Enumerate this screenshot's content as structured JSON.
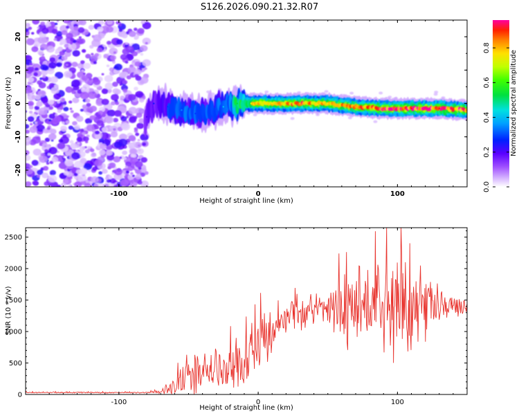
{
  "title": "S126.2026.090.21.32.R07",
  "chart_data": [
    {
      "type": "heatmap",
      "title": "S126.2026.090.21.32.R07",
      "xlabel": "Height of straight line (km)",
      "ylabel": "Frequency (Hz)",
      "xlim": [
        -167,
        150
      ],
      "ylim": [
        -25,
        25
      ],
      "x_ticks": [
        -100,
        0,
        100
      ],
      "x_tick_labels": [
        "-100",
        "0",
        "100"
      ],
      "y_ticks": [
        -20,
        -10,
        0,
        10,
        20
      ],
      "y_tick_labels": [
        "-20",
        "-10",
        "0",
        "10",
        "20"
      ],
      "colorbar": {
        "label": "Normalized spectral amplitude",
        "range": [
          0,
          0.96
        ],
        "ticks": [
          0.0,
          0.2,
          0.4,
          0.6,
          0.8
        ],
        "tick_labels": [
          "0.0",
          "0.2",
          "0.4",
          "0.6",
          "0.8"
        ]
      },
      "signal_band": [
        {
          "x": -80,
          "freq": -4,
          "amp": 0.2
        },
        {
          "x": -75,
          "freq": 0,
          "amp": 0.25
        },
        {
          "x": -65,
          "freq": -1,
          "amp": 0.3
        },
        {
          "x": -55,
          "freq": -2,
          "amp": 0.35
        },
        {
          "x": -45,
          "freq": -3,
          "amp": 0.3
        },
        {
          "x": -35,
          "freq": -3,
          "amp": 0.3
        },
        {
          "x": -25,
          "freq": -1,
          "amp": 0.4
        },
        {
          "x": -15,
          "freq": 0,
          "amp": 0.55
        },
        {
          "x": -5,
          "freq": 0,
          "amp": 0.75
        },
        {
          "x": 10,
          "freq": 0,
          "amp": 0.8
        },
        {
          "x": 30,
          "freq": 0,
          "amp": 0.85
        },
        {
          "x": 50,
          "freq": 0,
          "amp": 0.8
        },
        {
          "x": 70,
          "freq": -1,
          "amp": 0.85
        },
        {
          "x": 90,
          "freq": -1.5,
          "amp": 0.9
        },
        {
          "x": 110,
          "freq": -1.5,
          "amp": 0.95
        },
        {
          "x": 130,
          "freq": -1.5,
          "amp": 0.95
        },
        {
          "x": 150,
          "freq": -2,
          "amp": 0.9
        }
      ]
    },
    {
      "type": "line",
      "xlabel": "Height of straight line (km)",
      "ylabel": "SNR (10 * v/v)",
      "xlim": [
        -167,
        150
      ],
      "ylim": [
        0,
        2650
      ],
      "x_ticks": [
        -100,
        0,
        100
      ],
      "x_tick_labels": [
        "-100",
        "0",
        "100"
      ],
      "y_ticks": [
        0,
        500,
        1000,
        1500,
        2000,
        2500
      ],
      "y_tick_labels": [
        "0",
        "500",
        "1000",
        "1500",
        "2000",
        "2500"
      ],
      "series": [
        {
          "name": "SNR",
          "color": "#e8322c",
          "envelope": {
            "x": [
              -167,
              -80,
              -70,
              -60,
              -50,
              -40,
              -30,
              -20,
              -10,
              0,
              10,
              20,
              30,
              40,
              50,
              60,
              70,
              80,
              90,
              100,
              110,
              120,
              130,
              140,
              150
            ],
            "mean": [
              30,
              30,
              40,
              200,
              300,
              350,
              300,
              400,
              600,
              850,
              950,
              1250,
              1300,
              1350,
              1350,
              1400,
              1400,
              1400,
              1400,
              1400,
              1400,
              1400,
              1400,
              1400,
              1380
            ],
            "spread": [
              10,
              10,
              30,
              300,
              350,
              350,
              300,
              450,
              550,
              450,
              400,
              250,
              250,
              300,
              350,
              600,
              700,
              800,
              800,
              800,
              700,
              500,
              300,
              200,
              100
            ]
          }
        }
      ],
      "peak_max": 2650
    }
  ]
}
